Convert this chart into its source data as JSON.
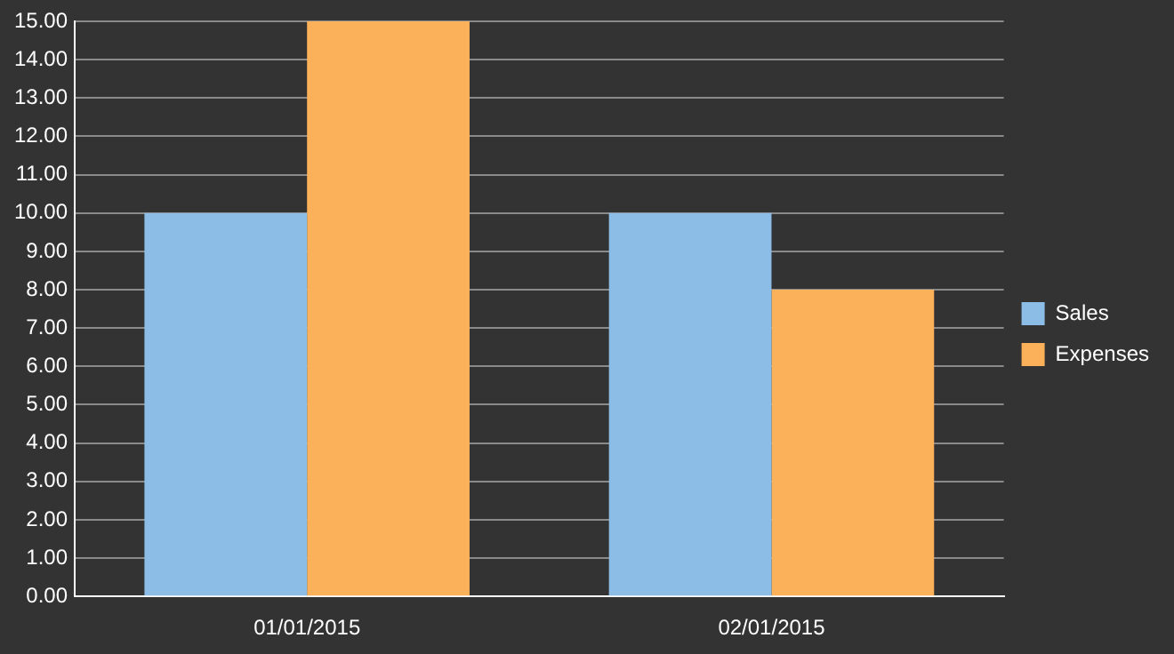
{
  "chart_data": {
    "type": "bar",
    "categories": [
      "01/01/2015",
      "02/01/2015"
    ],
    "series": [
      {
        "name": "Sales",
        "color": "#8bbde6",
        "values": [
          10,
          10
        ]
      },
      {
        "name": "Expenses",
        "color": "#fbb05a",
        "values": [
          15,
          8
        ]
      }
    ],
    "ylim": [
      0,
      15
    ],
    "yticks": [
      {
        "value": 0,
        "label": "0.00"
      },
      {
        "value": 1,
        "label": "1.00"
      },
      {
        "value": 2,
        "label": "2.00"
      },
      {
        "value": 3,
        "label": "3.00"
      },
      {
        "value": 4,
        "label": "4.00"
      },
      {
        "value": 5,
        "label": "5.00"
      },
      {
        "value": 6,
        "label": "6.00"
      },
      {
        "value": 7,
        "label": "7.00"
      },
      {
        "value": 8,
        "label": "8.00"
      },
      {
        "value": 9,
        "label": "9.00"
      },
      {
        "value": 10,
        "label": "10.00"
      },
      {
        "value": 11,
        "label": "11.00"
      },
      {
        "value": 12,
        "label": "12.00"
      },
      {
        "value": 13,
        "label": "13.00"
      },
      {
        "value": 14,
        "label": "14.00"
      },
      {
        "value": 15,
        "label": "15.00"
      }
    ],
    "grid": "y",
    "legend": "right"
  }
}
